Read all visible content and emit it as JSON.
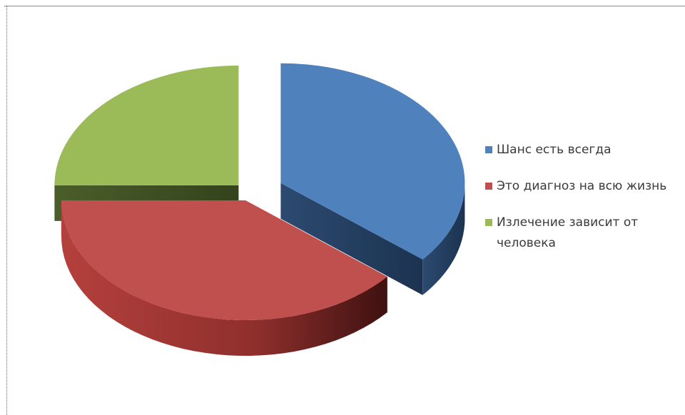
{
  "chart_data": {
    "type": "pie",
    "title": "",
    "categories": [
      "Шанс есть всегда",
      "Это диагноз на всю жизнь",
      "Излечение зависит от человека"
    ],
    "values": [
      36,
      39,
      25
    ],
    "colors": [
      "#4f81bd",
      "#c0504d",
      "#9bbb59"
    ],
    "exploded": true,
    "style": "3d",
    "legend_position": "right"
  }
}
